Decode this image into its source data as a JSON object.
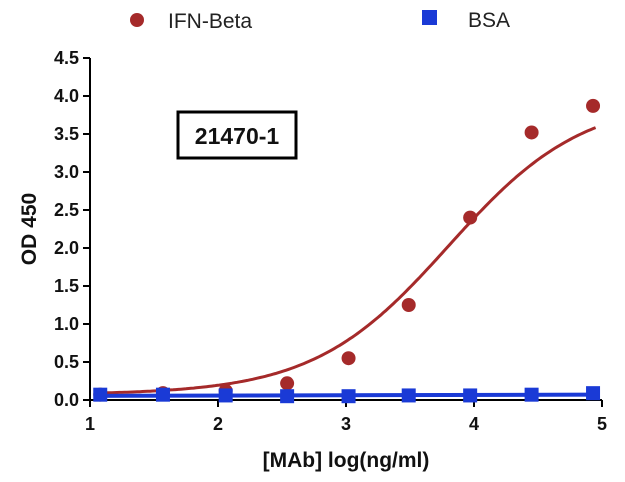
{
  "chart_data": {
    "type": "scatter",
    "xlabel": "[MAb] log(ng/ml)",
    "ylabel": "OD 450",
    "xlim": [
      1,
      5
    ],
    "ylim": [
      0,
      4.5
    ],
    "xticks": [
      "1",
      "2",
      "3",
      "4",
      "5"
    ],
    "yticks": [
      "0.0",
      "0.5",
      "1.0",
      "1.5",
      "2.0",
      "2.5",
      "3.0",
      "3.5",
      "4.0",
      "4.5"
    ],
    "annotation": "21470-1",
    "legend_position": "top",
    "series": [
      {
        "name": "IFN-Beta",
        "color": "#a52a2a",
        "marker": "circle",
        "x": [
          1.08,
          1.57,
          2.06,
          2.54,
          3.02,
          3.49,
          3.97,
          4.45,
          4.93
        ],
        "y": [
          0.07,
          0.09,
          0.12,
          0.22,
          0.55,
          1.25,
          2.4,
          3.52,
          3.87
        ],
        "fit": "sigmoid"
      },
      {
        "name": "BSA",
        "color": "#1a3ad6",
        "marker": "square",
        "x": [
          1.08,
          1.57,
          2.06,
          2.54,
          3.02,
          3.49,
          3.97,
          4.45,
          4.93
        ],
        "y": [
          0.07,
          0.07,
          0.06,
          0.05,
          0.05,
          0.06,
          0.06,
          0.07,
          0.09
        ],
        "fit": "linear"
      }
    ]
  }
}
